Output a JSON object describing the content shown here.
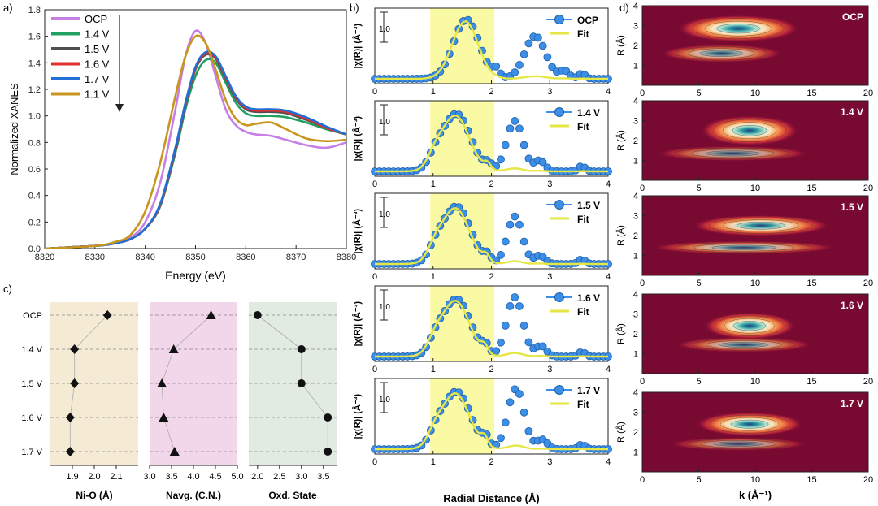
{
  "chart_data": [
    {
      "panel": "a",
      "type": "line",
      "panel_label": "a)",
      "title": "",
      "xlabel": "Energy (eV)",
      "ylabel": "Normalized XANES",
      "xlim": [
        8320,
        8380
      ],
      "ylim": [
        0,
        1.8
      ],
      "xticks": [
        "8320",
        "8330",
        "8340",
        "8350",
        "8360",
        "8370",
        "8380"
      ],
      "yticks": [
        "0.0",
        "0.2",
        "0.4",
        "0.6",
        "0.8",
        "1.0",
        "1.2",
        "1.4",
        "1.6",
        "1.8"
      ],
      "legend_position": "top-left",
      "series": [
        {
          "name": "OCP",
          "color": "#c77fe6",
          "x": [
            8320,
            8330,
            8334,
            8337,
            8340,
            8343,
            8346,
            8348,
            8350,
            8352,
            8354,
            8356,
            8358,
            8360,
            8362,
            8365,
            8368,
            8372,
            8376,
            8380
          ],
          "y": [
            0,
            0.02,
            0.04,
            0.08,
            0.2,
            0.5,
            1.05,
            1.45,
            1.64,
            1.55,
            1.3,
            1.05,
            0.93,
            0.88,
            0.86,
            0.85,
            0.82,
            0.78,
            0.76,
            0.8
          ]
        },
        {
          "name": "1.4 V",
          "color": "#20a060",
          "x": [
            8320,
            8330,
            8334,
            8337,
            8340,
            8343,
            8346,
            8348,
            8350,
            8352,
            8354,
            8356,
            8358,
            8360,
            8362,
            8365,
            8368,
            8372,
            8376,
            8380
          ],
          "y": [
            0,
            0.02,
            0.04,
            0.07,
            0.15,
            0.32,
            0.72,
            1.05,
            1.3,
            1.42,
            1.4,
            1.25,
            1.1,
            1.02,
            1.0,
            1.0,
            0.99,
            0.95,
            0.9,
            0.86
          ]
        },
        {
          "name": "1.5 V",
          "color": "#505050",
          "x": [
            8320,
            8330,
            8334,
            8337,
            8340,
            8343,
            8346,
            8348,
            8350,
            8352,
            8354,
            8356,
            8358,
            8360,
            8362,
            8365,
            8368,
            8372,
            8376,
            8380
          ],
          "y": [
            0,
            0.02,
            0.04,
            0.07,
            0.15,
            0.33,
            0.74,
            1.08,
            1.35,
            1.46,
            1.43,
            1.28,
            1.13,
            1.05,
            1.03,
            1.03,
            1.02,
            0.97,
            0.91,
            0.86
          ]
        },
        {
          "name": "1.6 V",
          "color": "#e03030",
          "x": [
            8320,
            8330,
            8334,
            8337,
            8340,
            8343,
            8346,
            8348,
            8350,
            8352,
            8354,
            8356,
            8358,
            8360,
            8362,
            8365,
            8368,
            8372,
            8376,
            8380
          ],
          "y": [
            0,
            0.02,
            0.04,
            0.07,
            0.15,
            0.33,
            0.75,
            1.09,
            1.36,
            1.47,
            1.44,
            1.29,
            1.14,
            1.06,
            1.04,
            1.04,
            1.03,
            0.98,
            0.91,
            0.86
          ]
        },
        {
          "name": "1.7 V",
          "color": "#1f6fd6",
          "x": [
            8320,
            8330,
            8334,
            8337,
            8340,
            8343,
            8346,
            8348,
            8350,
            8352,
            8354,
            8356,
            8358,
            8360,
            8362,
            8365,
            8368,
            8372,
            8376,
            8380
          ],
          "y": [
            0,
            0.02,
            0.04,
            0.07,
            0.15,
            0.34,
            0.76,
            1.1,
            1.37,
            1.48,
            1.45,
            1.3,
            1.15,
            1.07,
            1.05,
            1.05,
            1.04,
            0.99,
            0.92,
            0.86
          ]
        },
        {
          "name": "1.1 V",
          "color": "#c8961e",
          "x": [
            8320,
            8330,
            8334,
            8337,
            8340,
            8343,
            8346,
            8348,
            8350,
            8352,
            8354,
            8356,
            8358,
            8360,
            8362,
            8365,
            8368,
            8372,
            8376,
            8380
          ],
          "y": [
            0,
            0.02,
            0.05,
            0.1,
            0.28,
            0.65,
            1.15,
            1.45,
            1.6,
            1.55,
            1.35,
            1.12,
            0.98,
            0.93,
            0.94,
            0.95,
            0.9,
            0.83,
            0.81,
            0.82
          ]
        }
      ]
    },
    {
      "panel": "b",
      "type": "line",
      "panel_label": "b)",
      "xlabel": "Radial Distance (Å)",
      "ylabel": "|χ(R)| (Å⁻³)",
      "scale_label": "1.0",
      "xlim": [
        0,
        4
      ],
      "xticks": [
        "0",
        "1",
        "2",
        "3",
        "4"
      ],
      "shaded_region": [
        0.95,
        2.05
      ],
      "fit_label": "Fit",
      "subplots": [
        {
          "name": "OCP",
          "peaks": [
            [
              1.57,
              1.0,
              0.22
            ],
            [
              2.08,
              0.14,
              0.06
            ],
            [
              2.75,
              0.72,
              0.18
            ],
            [
              3.25,
              0.13,
              0.08
            ],
            [
              3.55,
              0.09,
              0.06
            ]
          ]
        },
        {
          "name": "1.4 V",
          "peaks": [
            [
              1.4,
              0.97,
              0.24
            ],
            [
              1.05,
              0.18,
              0.12
            ],
            [
              1.95,
              0.11,
              0.06
            ],
            [
              2.4,
              0.85,
              0.14
            ],
            [
              2.83,
              0.18,
              0.09
            ],
            [
              3.55,
              0.09,
              0.06
            ]
          ]
        },
        {
          "name": "1.5 V",
          "peaks": [
            [
              1.4,
              0.97,
              0.24
            ],
            [
              1.05,
              0.18,
              0.12
            ],
            [
              1.93,
              0.12,
              0.06
            ],
            [
              2.4,
              0.8,
              0.13
            ],
            [
              2.83,
              0.14,
              0.09
            ],
            [
              3.55,
              0.08,
              0.06
            ]
          ]
        },
        {
          "name": "1.6 V",
          "peaks": [
            [
              1.4,
              0.97,
              0.24
            ],
            [
              1.05,
              0.18,
              0.12
            ],
            [
              1.9,
              0.14,
              0.06
            ],
            [
              2.4,
              1.0,
              0.14
            ],
            [
              2.85,
              0.18,
              0.09
            ],
            [
              3.55,
              0.08,
              0.06
            ]
          ]
        },
        {
          "name": "1.7 V",
          "peaks": [
            [
              1.4,
              0.97,
              0.24
            ],
            [
              1.05,
              0.18,
              0.12
            ],
            [
              1.9,
              0.16,
              0.06
            ],
            [
              2.42,
              1.02,
              0.14
            ],
            [
              2.87,
              0.16,
              0.09
            ],
            [
              3.55,
              0.08,
              0.06
            ]
          ]
        }
      ]
    },
    {
      "panel": "c",
      "type": "scatter",
      "panel_label": "c)",
      "categories": [
        "OCP",
        "1.4 V",
        "1.5 V",
        "1.6 V",
        "1.7 V"
      ],
      "subplots": [
        {
          "xlabel": "Ni-O (Å)",
          "xlim": [
            1.8,
            2.2
          ],
          "xticks": [
            "1.9",
            "2.0",
            "2.1"
          ],
          "values": [
            2.06,
            1.91,
            1.91,
            1.89,
            1.89
          ],
          "marker": "diamond",
          "bg": "#f5ebd4"
        },
        {
          "xlabel": "Navg. (C.N.)",
          "xlim": [
            3.0,
            5.0
          ],
          "xticks": [
            "3.0",
            "3.5",
            "4.0",
            "4.5",
            "5.0"
          ],
          "values": [
            4.4,
            3.55,
            3.28,
            3.32,
            3.57
          ],
          "marker": "triangle",
          "bg": "#f2d7ea"
        },
        {
          "xlabel": "Oxd. State",
          "xlim": [
            1.8,
            3.8
          ],
          "xticks": [
            "2.0",
            "2.5",
            "3.0",
            "3.5"
          ],
          "values": [
            2.0,
            3.0,
            3.0,
            3.6,
            3.6
          ],
          "marker": "circle",
          "bg": "#e2ebe2"
        }
      ]
    },
    {
      "panel": "d",
      "type": "heatmap",
      "panel_label": "d)",
      "xlabel": "k (Å⁻¹)",
      "ylabel": "R (Å)",
      "xlim": [
        0,
        20
      ],
      "ylim": [
        0,
        4
      ],
      "xticks": [
        "0",
        "5",
        "10",
        "15",
        "20"
      ],
      "yticks": [
        "1",
        "2",
        "3",
        "4"
      ],
      "maps": [
        {
          "name": "OCP",
          "blobs": [
            [
              8.5,
              2.85,
              4,
              0.45,
              1.0
            ],
            [
              7,
              1.6,
              4,
              0.3,
              0.75
            ]
          ]
        },
        {
          "name": "1.4 V",
          "blobs": [
            [
              9.5,
              2.5,
              3.2,
              0.5,
              1.0
            ],
            [
              8,
              1.35,
              5,
              0.25,
              0.65
            ]
          ]
        },
        {
          "name": "1.5 V",
          "blobs": [
            [
              10.5,
              2.5,
              4.5,
              0.35,
              0.95
            ],
            [
              9,
              1.4,
              6,
              0.22,
              0.75
            ]
          ]
        },
        {
          "name": "1.6 V",
          "blobs": [
            [
              9.5,
              2.4,
              3,
              0.45,
              1.0
            ],
            [
              9,
              1.45,
              4.5,
              0.25,
              0.7
            ]
          ]
        },
        {
          "name": "1.7 V",
          "blobs": [
            [
              9.5,
              2.4,
              3.5,
              0.4,
              1.0
            ],
            [
              8.5,
              1.4,
              4.5,
              0.22,
              0.6
            ]
          ]
        }
      ]
    }
  ]
}
